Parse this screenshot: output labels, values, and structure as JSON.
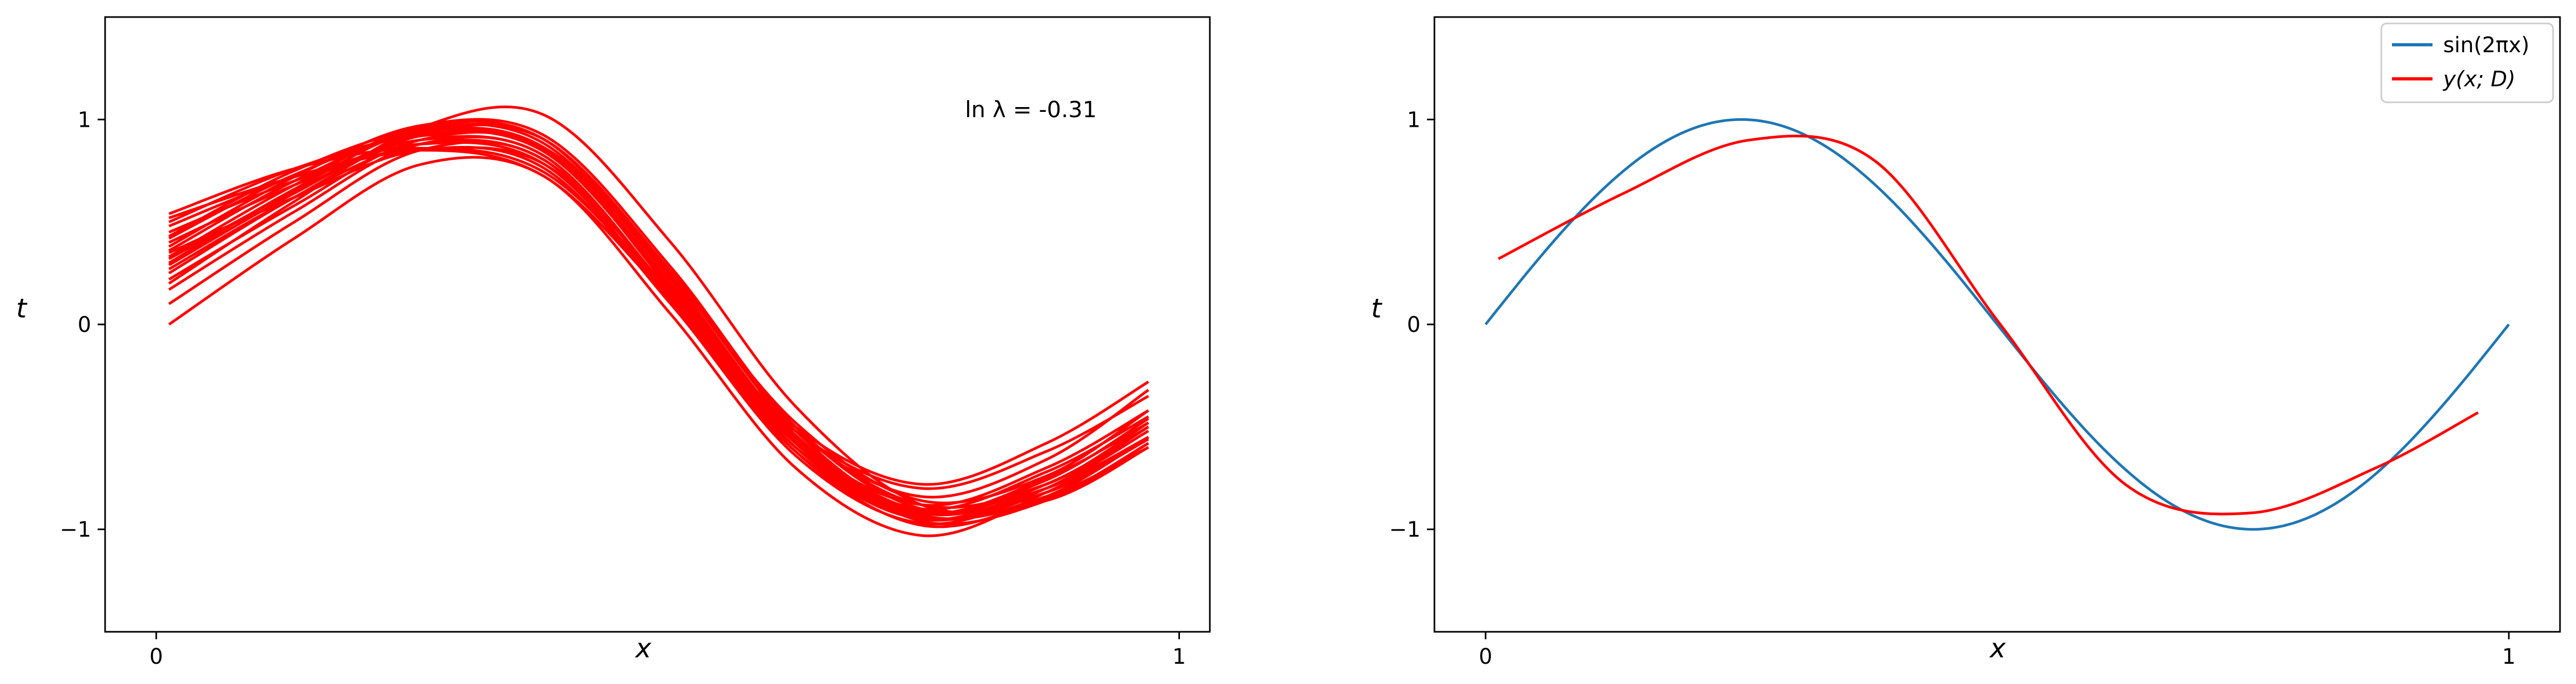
{
  "chart_data": [
    {
      "type": "line",
      "xlabel": "x",
      "ylabel": "t",
      "xlim": [
        -0.05,
        1.03
      ],
      "ylim": [
        -1.5,
        1.5
      ],
      "xticks": [
        0,
        1
      ],
      "xtick_labels": [
        "0",
        "1"
      ],
      "yticks": [
        -1,
        0,
        1
      ],
      "ytick_labels": [
        "−1",
        "0",
        "1"
      ],
      "annotation": "ln λ = -0.31",
      "series_color": "#ff0000",
      "series": [
        {
          "x": [
            0.0125,
            0.135,
            0.258,
            0.38,
            0.503,
            0.625,
            0.748,
            0.87,
            0.97
          ],
          "y": [
            0.0,
            0.42,
            0.78,
            0.72,
            0.05,
            -0.7,
            -1.03,
            -0.82,
            -0.55
          ]
        },
        {
          "x": [
            0.0125,
            0.135,
            0.258,
            0.38,
            0.503,
            0.625,
            0.748,
            0.87,
            0.97
          ],
          "y": [
            0.1,
            0.5,
            0.85,
            0.8,
            0.1,
            -0.62,
            -0.95,
            -0.78,
            -0.5
          ]
        },
        {
          "x": [
            0.0125,
            0.135,
            0.258,
            0.38,
            0.503,
            0.625,
            0.748,
            0.87,
            0.97
          ],
          "y": [
            0.17,
            0.55,
            0.88,
            0.82,
            0.13,
            -0.6,
            -0.92,
            -0.75,
            -0.48
          ]
        },
        {
          "x": [
            0.0125,
            0.135,
            0.258,
            0.38,
            0.503,
            0.625,
            0.748,
            0.87,
            0.97
          ],
          "y": [
            0.2,
            0.6,
            0.96,
            1.02,
            0.4,
            -0.4,
            -0.88,
            -0.86,
            -0.6
          ]
        },
        {
          "x": [
            0.0125,
            0.135,
            0.258,
            0.38,
            0.503,
            0.625,
            0.748,
            0.87,
            0.97
          ],
          "y": [
            0.22,
            0.58,
            0.9,
            0.85,
            0.17,
            -0.58,
            -0.9,
            -0.72,
            -0.45
          ]
        },
        {
          "x": [
            0.0125,
            0.135,
            0.258,
            0.38,
            0.503,
            0.625,
            0.748,
            0.87,
            0.97
          ],
          "y": [
            0.25,
            0.62,
            0.92,
            0.86,
            0.2,
            -0.55,
            -0.88,
            -0.7,
            -0.42
          ]
        },
        {
          "x": [
            0.0125,
            0.135,
            0.258,
            0.38,
            0.503,
            0.625,
            0.748,
            0.87,
            0.97
          ],
          "y": [
            0.27,
            0.62,
            0.88,
            0.8,
            0.15,
            -0.6,
            -0.95,
            -0.8,
            -0.52
          ]
        },
        {
          "x": [
            0.0125,
            0.135,
            0.258,
            0.38,
            0.503,
            0.625,
            0.748,
            0.87,
            0.97
          ],
          "y": [
            0.29,
            0.64,
            0.93,
            0.9,
            0.25,
            -0.52,
            -0.93,
            -0.85,
            -0.58
          ]
        },
        {
          "x": [
            0.0125,
            0.135,
            0.258,
            0.38,
            0.503,
            0.625,
            0.748,
            0.87,
            0.97
          ],
          "y": [
            0.3,
            0.66,
            0.95,
            0.88,
            0.22,
            -0.55,
            -0.92,
            -0.8,
            -0.55
          ]
        },
        {
          "x": [
            0.0125,
            0.135,
            0.258,
            0.38,
            0.503,
            0.625,
            0.748,
            0.87,
            0.97
          ],
          "y": [
            0.32,
            0.65,
            0.92,
            0.85,
            0.18,
            -0.58,
            -0.94,
            -0.82,
            -0.56
          ]
        },
        {
          "x": [
            0.0125,
            0.135,
            0.258,
            0.38,
            0.503,
            0.625,
            0.748,
            0.87,
            0.97
          ],
          "y": [
            0.33,
            0.68,
            0.96,
            0.9,
            0.23,
            -0.54,
            -0.91,
            -0.78,
            -0.5
          ]
        },
        {
          "x": [
            0.0125,
            0.135,
            0.258,
            0.38,
            0.503,
            0.625,
            0.748,
            0.87,
            0.97
          ],
          "y": [
            0.35,
            0.62,
            0.85,
            0.76,
            0.1,
            -0.64,
            -0.97,
            -0.8,
            -0.5
          ]
        },
        {
          "x": [
            0.0125,
            0.135,
            0.258,
            0.38,
            0.503,
            0.625,
            0.748,
            0.87,
            0.97
          ],
          "y": [
            0.36,
            0.7,
            0.94,
            0.86,
            0.2,
            -0.56,
            -0.94,
            -0.84,
            -0.6
          ]
        },
        {
          "x": [
            0.0125,
            0.135,
            0.258,
            0.38,
            0.503,
            0.625,
            0.748,
            0.87,
            0.97
          ],
          "y": [
            0.38,
            0.72,
            0.97,
            0.92,
            0.28,
            -0.5,
            -0.9,
            -0.82,
            -0.55
          ]
        },
        {
          "x": [
            0.0125,
            0.135,
            0.258,
            0.38,
            0.503,
            0.625,
            0.748,
            0.87,
            0.97
          ],
          "y": [
            0.4,
            0.68,
            0.9,
            0.82,
            0.15,
            -0.58,
            -0.92,
            -0.76,
            -0.46
          ]
        },
        {
          "x": [
            0.0125,
            0.135,
            0.258,
            0.38,
            0.503,
            0.625,
            0.748,
            0.87,
            0.97
          ],
          "y": [
            0.42,
            0.73,
            0.93,
            0.84,
            0.18,
            -0.57,
            -0.96,
            -0.86,
            -0.58
          ]
        },
        {
          "x": [
            0.0125,
            0.135,
            0.258,
            0.38,
            0.503,
            0.625,
            0.748,
            0.87,
            0.97
          ],
          "y": [
            0.43,
            0.75,
            0.95,
            0.9,
            0.26,
            -0.5,
            -0.88,
            -0.78,
            -0.48
          ]
        },
        {
          "x": [
            0.0125,
            0.135,
            0.258,
            0.38,
            0.503,
            0.625,
            0.748,
            0.87,
            0.97
          ],
          "y": [
            0.45,
            0.7,
            0.88,
            0.78,
            0.12,
            -0.62,
            -0.98,
            -0.84,
            -0.55
          ]
        },
        {
          "x": [
            0.0125,
            0.135,
            0.258,
            0.38,
            0.503,
            0.625,
            0.748,
            0.87,
            0.97
          ],
          "y": [
            0.48,
            0.72,
            0.85,
            0.72,
            0.12,
            -0.52,
            -0.8,
            -0.62,
            -0.35
          ]
        },
        {
          "x": [
            0.0125,
            0.135,
            0.258,
            0.38,
            0.503,
            0.625,
            0.748,
            0.87,
            0.97
          ],
          "y": [
            0.5,
            0.76,
            0.92,
            0.86,
            0.24,
            -0.48,
            -0.86,
            -0.74,
            -0.42
          ]
        },
        {
          "x": [
            0.0125,
            0.135,
            0.258,
            0.38,
            0.503,
            0.625,
            0.748,
            0.87,
            0.97
          ],
          "y": [
            0.52,
            0.72,
            0.85,
            0.78,
            0.16,
            -0.52,
            -0.84,
            -0.66,
            -0.32
          ]
        },
        {
          "x": [
            0.0125,
            0.135,
            0.258,
            0.38,
            0.503,
            0.625,
            0.748,
            0.87,
            0.97
          ],
          "y": [
            0.54,
            0.76,
            0.86,
            0.74,
            0.14,
            -0.5,
            -0.78,
            -0.58,
            -0.28
          ]
        }
      ]
    },
    {
      "type": "line",
      "xlabel": "x",
      "ylabel": "t",
      "xlim": [
        -0.05,
        1.05
      ],
      "ylim": [
        -1.5,
        1.5
      ],
      "xticks": [
        0,
        1
      ],
      "xtick_labels": [
        "0",
        "1"
      ],
      "yticks": [
        -1,
        0,
        1
      ],
      "ytick_labels": [
        "−1",
        "0",
        "1"
      ],
      "legend_position": "top-right",
      "series": [
        {
          "name": "sin(2πx)",
          "color": "#1f77b4",
          "function": "sin(2*pi*x)",
          "x_range": [
            0,
            1
          ]
        },
        {
          "name": "y(x; D)",
          "color": "#ff0000",
          "x": [
            0.0125,
            0.135,
            0.258,
            0.38,
            0.503,
            0.625,
            0.748,
            0.87,
            0.97
          ],
          "y": [
            0.32,
            0.64,
            0.9,
            0.8,
            0.0,
            -0.78,
            -0.92,
            -0.7,
            -0.43
          ]
        }
      ]
    }
  ]
}
